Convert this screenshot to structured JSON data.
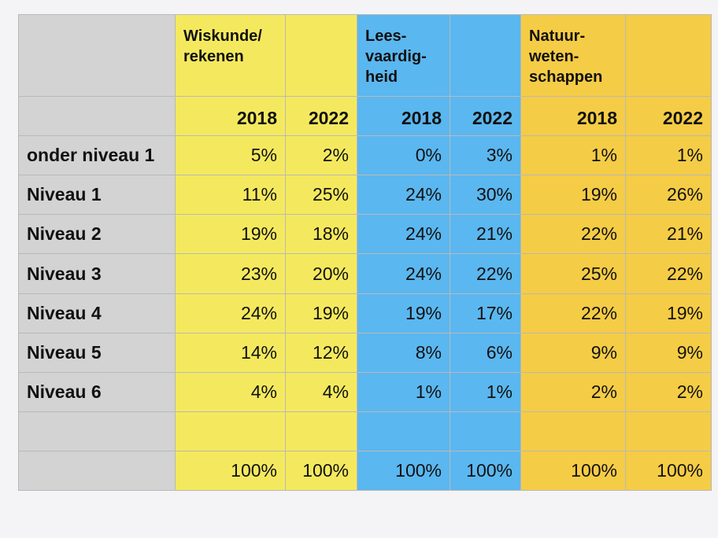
{
  "chart_data": {
    "type": "table",
    "subjects": [
      {
        "name": "Wiskunde/\nrekenen",
        "color": "#f4e95e"
      },
      {
        "name": "Lees-\nvaardig-\nheid",
        "color": "#5bb7ef"
      },
      {
        "name": "Natuur-\nweten-\nschappen",
        "color": "#f5cc45"
      }
    ],
    "years": [
      "2018",
      "2022",
      "2018",
      "2022",
      "2018",
      "2022"
    ],
    "rows": [
      {
        "label": "onder niveau 1",
        "values": [
          "5%",
          "2%",
          "0%",
          "3%",
          "1%",
          "1%"
        ]
      },
      {
        "label": "Niveau 1",
        "values": [
          "11%",
          "25%",
          "24%",
          "30%",
          "19%",
          "26%"
        ]
      },
      {
        "label": "Niveau 2",
        "values": [
          "19%",
          "18%",
          "24%",
          "21%",
          "22%",
          "21%"
        ]
      },
      {
        "label": "Niveau 3",
        "values": [
          "23%",
          "20%",
          "24%",
          "22%",
          "25%",
          "22%"
        ]
      },
      {
        "label": "Niveau 4",
        "values": [
          "24%",
          "19%",
          "19%",
          "17%",
          "22%",
          "19%"
        ]
      },
      {
        "label": "Niveau 5",
        "values": [
          "14%",
          "12%",
          "8%",
          "6%",
          "9%",
          "9%"
        ]
      },
      {
        "label": "Niveau 6",
        "values": [
          "4%",
          "4%",
          "1%",
          "1%",
          "2%",
          "2%"
        ]
      }
    ],
    "totals": [
      "100%",
      "100%",
      "100%",
      "100%",
      "100%",
      "100%"
    ]
  },
  "label_color": "#d3d3d3"
}
